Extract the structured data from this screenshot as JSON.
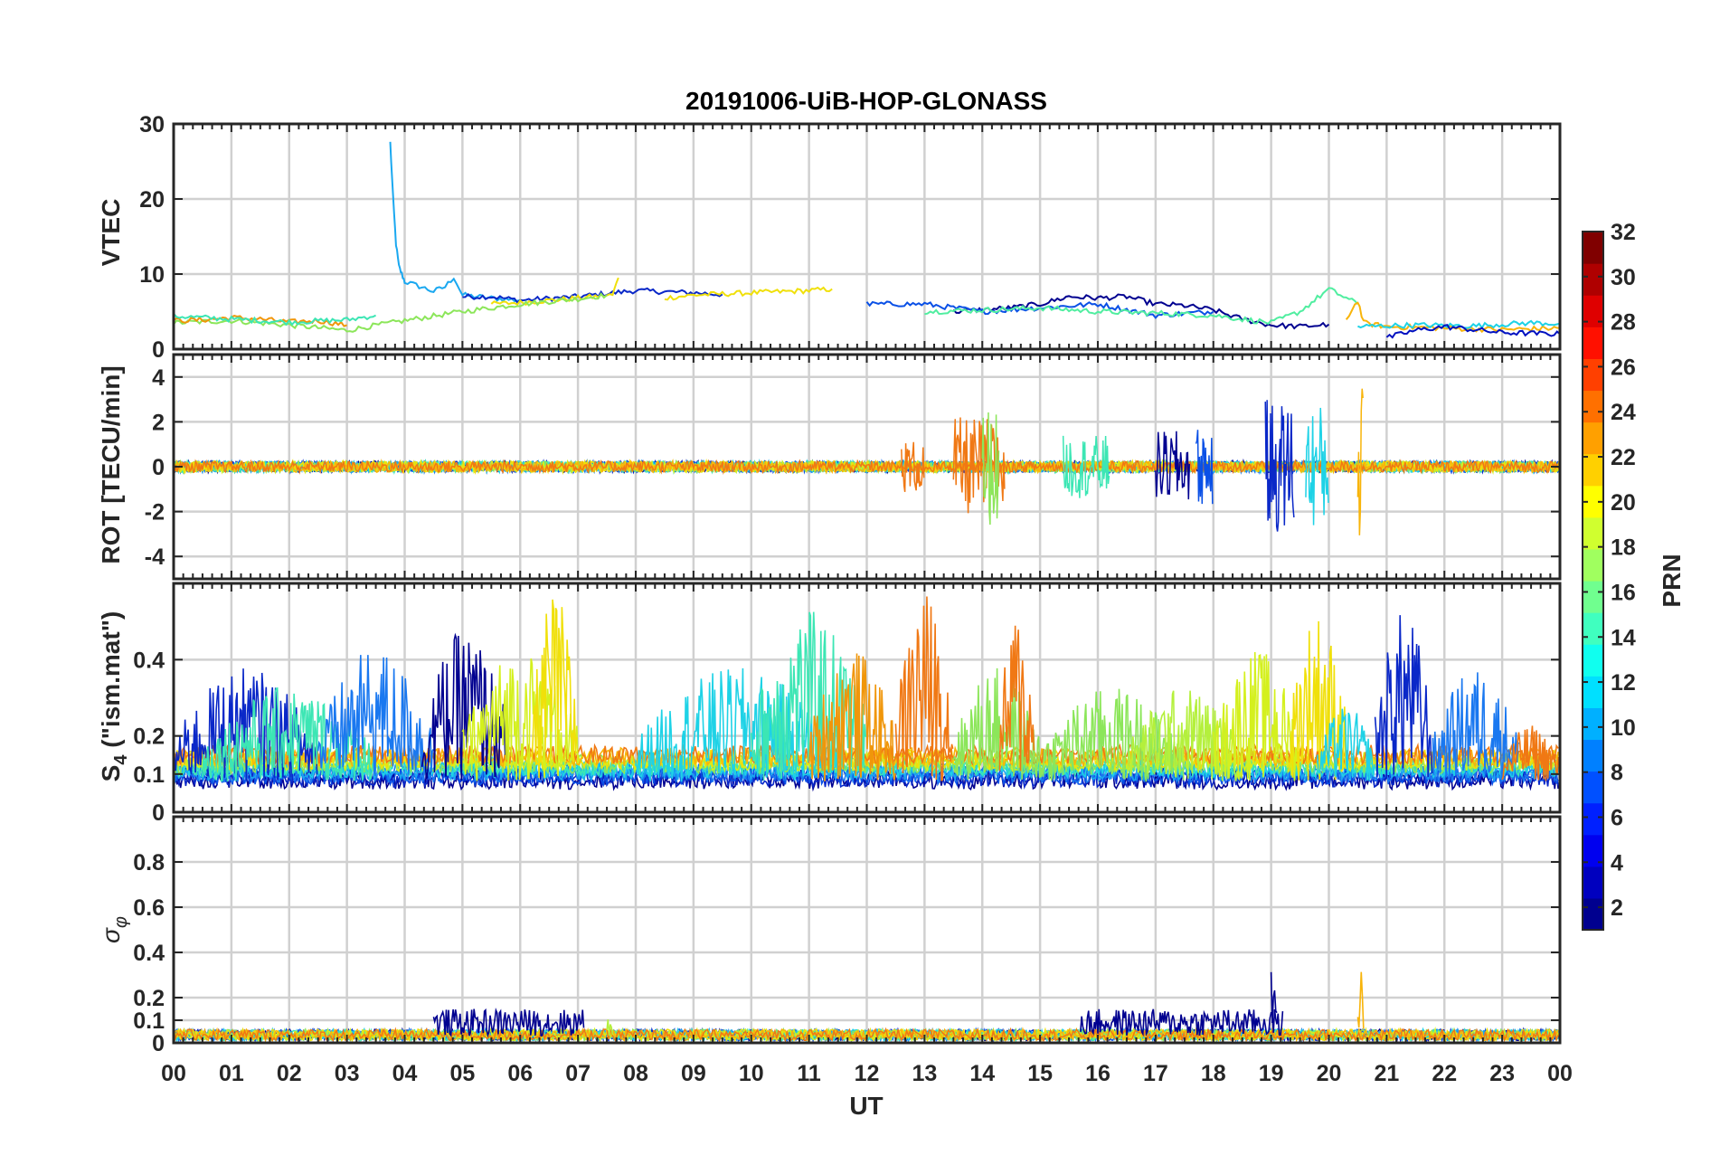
{
  "chart_data": [
    {
      "id": "vtec",
      "type": "line",
      "title": "20191006-UiB-HOP-GLONASS",
      "ylabel": "VTEC",
      "ylim": [
        0,
        30
      ],
      "yticks": [
        0,
        10,
        20,
        30
      ],
      "grid": true,
      "series": [
        {
          "prn": 9,
          "color": "#1aa8f0",
          "x": [
            3.75,
            3.8,
            3.85,
            3.9,
            3.95,
            4.0,
            4.2,
            4.5,
            4.7,
            4.85,
            5.0,
            5.5,
            6.0
          ],
          "y": [
            27.5,
            20,
            14,
            11,
            10,
            9,
            8.5,
            7.7,
            8.3,
            9.6,
            7.2,
            6.8,
            6.5
          ]
        },
        {
          "prn": 3,
          "color": "#0a28c8",
          "x": [
            5.0,
            5.5,
            6.0,
            7.0,
            8.0,
            9.0,
            9.5
          ],
          "y": [
            7,
            7,
            6.5,
            7.0,
            7.8,
            7.5,
            7.3
          ]
        },
        {
          "prn": 20,
          "color": "#f0e00a",
          "x": [
            5.5,
            6.0,
            7.0,
            7.6,
            7.7
          ],
          "y": [
            6,
            6.2,
            6.8,
            7.2,
            9.5
          ]
        },
        {
          "prn": 20,
          "color": "#f0e00a",
          "x": [
            8.5,
            9.0,
            10.0,
            11.0,
            11.4
          ],
          "y": [
            6.8,
            7.2,
            7.5,
            7.8,
            8.0
          ]
        },
        {
          "prn": 16,
          "color": "#8ce65a",
          "x": [
            0,
            1,
            2,
            3,
            4,
            5,
            6,
            7,
            7.5
          ],
          "y": [
            3.5,
            3.8,
            3.2,
            2.5,
            3.8,
            5,
            6,
            6.7,
            7.2
          ]
        },
        {
          "prn": 23,
          "color": "#f0960a",
          "x": [
            0,
            0.5,
            1,
            1.5,
            2,
            2.5,
            3
          ],
          "y": [
            3.8,
            3.9,
            4.2,
            4.0,
            3.6,
            3.8,
            3.2
          ]
        },
        {
          "prn": 14,
          "color": "#3ce6b4",
          "x": [
            0,
            1,
            2,
            3,
            3.5
          ],
          "y": [
            4.4,
            4.0,
            3.6,
            3.9,
            4.5
          ]
        },
        {
          "prn": 1,
          "color": "#000090",
          "x": [
            13.5,
            14.5,
            15.0,
            15.5,
            16.0,
            16.5,
            17.0,
            17.5,
            18.0,
            18.5,
            19.0,
            19.5,
            20.0
          ],
          "y": [
            5,
            5.5,
            6,
            7,
            6.8,
            7.0,
            6.0,
            5.8,
            5.2,
            4.0,
            3.2,
            3.0,
            3.3
          ]
        },
        {
          "prn": 6,
          "color": "#0a50e6",
          "x": [
            12.0,
            13.0,
            14.0,
            15.0,
            16.0,
            17.0,
            18.0
          ],
          "y": [
            6,
            6,
            5,
            5.5,
            6,
            4.5,
            5
          ]
        },
        {
          "prn": 15,
          "color": "#50eea0",
          "x": [
            13.0,
            14.0,
            15.0,
            16.0,
            17.0,
            18.0,
            19.0,
            19.5,
            20.0,
            20.5
          ],
          "y": [
            5,
            5.2,
            5.5,
            5,
            4.8,
            4.5,
            3.5,
            5,
            8,
            6
          ]
        },
        {
          "prn": 22,
          "color": "#f8b40a",
          "x": [
            20.3,
            20.5,
            20.6,
            21.0,
            22.0,
            23.0,
            24.0
          ],
          "y": [
            4,
            6.5,
            3.5,
            3.0,
            2.8,
            2.6,
            2.8
          ]
        },
        {
          "prn": 12,
          "color": "#1ed2e6",
          "x": [
            20.5,
            21.5,
            22.5,
            23.5,
            24.0
          ],
          "y": [
            3,
            3.2,
            3.1,
            3.5,
            3.4
          ]
        },
        {
          "prn": 4,
          "color": "#0010c0",
          "x": [
            21.0,
            21.5,
            22.0,
            23.0,
            24.0
          ],
          "y": [
            1.5,
            2.5,
            3.0,
            2.2,
            2.0
          ]
        }
      ]
    },
    {
      "id": "rot",
      "type": "line",
      "ylabel": "ROT [TECU/min]",
      "ylim": [
        -5,
        5
      ],
      "yticks": [
        -4,
        -2,
        0,
        2,
        4
      ],
      "grid": true
    },
    {
      "id": "s4",
      "type": "line",
      "ylabel": "S",
      "ylabel_sub": "4",
      "ylabel_tail": " (\"ism.mat\")",
      "ylim": [
        0,
        0.6
      ],
      "yticks": [
        0,
        0.1,
        0.2,
        0.4
      ],
      "grid": true
    },
    {
      "id": "sigma",
      "type": "line",
      "ylabel": "σ",
      "ylabel_sub": "φ",
      "ylim": [
        0,
        1
      ],
      "yticks": [
        0,
        0.1,
        0.2,
        0.4,
        0.6,
        0.8
      ],
      "grid": true
    }
  ],
  "x_axis": {
    "label": "UT",
    "range": [
      0,
      24
    ],
    "tick_labels": [
      "00",
      "01",
      "02",
      "03",
      "04",
      "05",
      "06",
      "07",
      "08",
      "09",
      "10",
      "11",
      "12",
      "13",
      "14",
      "15",
      "16",
      "17",
      "18",
      "19",
      "20",
      "21",
      "22",
      "23",
      "00"
    ]
  },
  "colorbar": {
    "label": "PRN",
    "range": [
      1,
      32
    ],
    "tick_labels": [
      "2",
      "4",
      "6",
      "8",
      "10",
      "12",
      "14",
      "16",
      "18",
      "20",
      "22",
      "24",
      "26",
      "28",
      "30",
      "32"
    ],
    "colormap": "jet",
    "colors": [
      "#00008f",
      "#0000bf",
      "#0000ef",
      "#0020ff",
      "#0050ff",
      "#0080ff",
      "#00b0ff",
      "#00e0ff",
      "#10ffef",
      "#40ffbf",
      "#70ff8f",
      "#a0ff5f",
      "#d0ff2f",
      "#ffff00",
      "#ffd000",
      "#ffa000",
      "#ff7000",
      "#ff4000",
      "#ff1000",
      "#df0000",
      "#af0000",
      "#800000"
    ]
  },
  "bursts": {
    "rot": [
      {
        "x": 12.6,
        "len": 0.4,
        "amp": 1.2,
        "color": "#f07814"
      },
      {
        "x": 13.5,
        "len": 0.9,
        "amp": 2.2,
        "color": "#f07814"
      },
      {
        "x": 14.0,
        "len": 0.3,
        "amp": 2.6,
        "color": "#8ce65a"
      },
      {
        "x": 15.4,
        "len": 0.8,
        "amp": 1.4,
        "color": "#3ce6b4"
      },
      {
        "x": 17.0,
        "len": 0.6,
        "amp": 1.6,
        "color": "#000090"
      },
      {
        "x": 17.7,
        "len": 0.3,
        "amp": 1.8,
        "color": "#0a50e6"
      },
      {
        "x": 18.9,
        "len": 0.5,
        "amp": 3.0,
        "color": "#0a28c8"
      },
      {
        "x": 19.6,
        "len": 0.4,
        "amp": 2.8,
        "color": "#1ed2e6"
      },
      {
        "x": 20.5,
        "len": 0.1,
        "amp": 3.8,
        "color": "#f8b40a"
      }
    ],
    "s4": [
      {
        "x": 0.0,
        "len": 2.5,
        "amp": 0.3,
        "color": "#0a28c8"
      },
      {
        "x": 0.5,
        "len": 3.0,
        "amp": 0.25,
        "color": "#3ce6b4"
      },
      {
        "x": 2.5,
        "len": 2.0,
        "amp": 0.35,
        "color": "#1a78f0"
      },
      {
        "x": 4.3,
        "len": 1.5,
        "amp": 0.4,
        "color": "#000090"
      },
      {
        "x": 5.0,
        "len": 2.0,
        "amp": 0.35,
        "color": "#d4f01e"
      },
      {
        "x": 6.2,
        "len": 0.8,
        "amp": 0.5,
        "color": "#f0e00a"
      },
      {
        "x": 8.0,
        "len": 3.5,
        "amp": 0.3,
        "color": "#1ed2e6"
      },
      {
        "x": 10.0,
        "len": 2.0,
        "amp": 0.45,
        "color": "#3ce6b4"
      },
      {
        "x": 11.0,
        "len": 1.5,
        "amp": 0.35,
        "color": "#f0960a"
      },
      {
        "x": 12.5,
        "len": 1.0,
        "amp": 0.5,
        "color": "#f07814"
      },
      {
        "x": 13.5,
        "len": 1.5,
        "amp": 0.3,
        "color": "#8ce65a"
      },
      {
        "x": 14.3,
        "len": 0.6,
        "amp": 0.45,
        "color": "#f07814"
      },
      {
        "x": 15.0,
        "len": 2.5,
        "amp": 0.25,
        "color": "#8ce65a"
      },
      {
        "x": 16.5,
        "len": 2.0,
        "amp": 0.25,
        "color": "#b4f03c"
      },
      {
        "x": 18.0,
        "len": 1.5,
        "amp": 0.35,
        "color": "#d4f01e"
      },
      {
        "x": 19.3,
        "len": 1.0,
        "amp": 0.45,
        "color": "#f0e00a"
      },
      {
        "x": 19.8,
        "len": 1.0,
        "amp": 0.2,
        "color": "#1ed2e6"
      },
      {
        "x": 20.8,
        "len": 1.0,
        "amp": 0.45,
        "color": "#0a28c8"
      },
      {
        "x": 21.8,
        "len": 1.5,
        "amp": 0.3,
        "color": "#1a78f0"
      },
      {
        "x": 23.0,
        "len": 1.0,
        "amp": 0.15,
        "color": "#f07814"
      }
    ],
    "sigma": [
      {
        "x": 4.5,
        "len": 2.6,
        "amp": 0.12,
        "color": "#000090"
      },
      {
        "x": 15.7,
        "len": 3.5,
        "amp": 0.12,
        "color": "#000090"
      },
      {
        "x": 19.0,
        "len": 0.1,
        "amp": 0.3,
        "color": "#000090"
      },
      {
        "x": 20.5,
        "len": 0.1,
        "amp": 0.3,
        "color": "#f8b40a"
      },
      {
        "x": 7.5,
        "len": 0.1,
        "amp": 0.08,
        "color": "#b4f03c"
      }
    ]
  }
}
